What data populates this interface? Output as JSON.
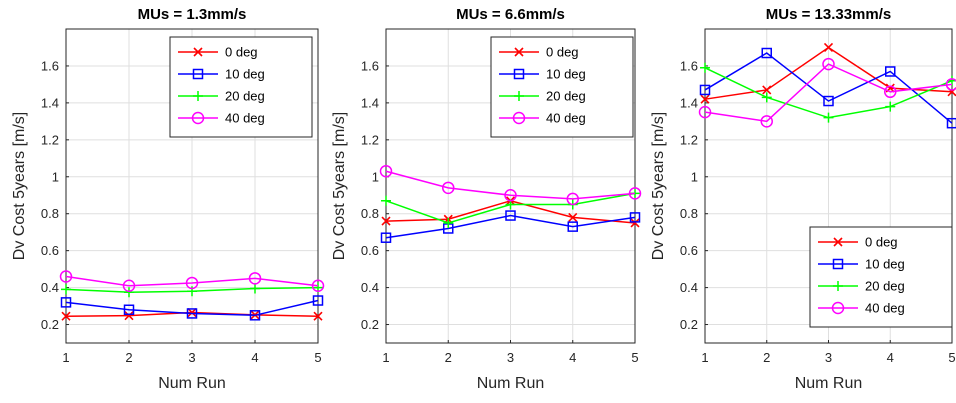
{
  "chart_data": [
    {
      "type": "line",
      "title": "MUs = 1.3mm/s",
      "xlabel": "Num Run",
      "ylabel": "Dv Cost 5years [m/s]",
      "x": [
        1,
        2,
        3,
        4,
        5
      ],
      "xlim": [
        1,
        5
      ],
      "ylim": [
        0.1,
        1.8
      ],
      "yticks": [
        0.2,
        0.4,
        0.6,
        0.8,
        1,
        1.2,
        1.4,
        1.6
      ],
      "grid": true,
      "legend_position": "top-right",
      "series": [
        {
          "name": "0 deg",
          "color": "#ff0000",
          "marker": "x",
          "values": [
            0.245,
            0.248,
            0.265,
            0.252,
            0.245
          ]
        },
        {
          "name": "10 deg",
          "color": "#0000ff",
          "marker": "square",
          "values": [
            0.32,
            0.28,
            0.26,
            0.25,
            0.33
          ]
        },
        {
          "name": "20 deg",
          "color": "#00ff00",
          "marker": "plus",
          "values": [
            0.39,
            0.375,
            0.38,
            0.395,
            0.4
          ]
        },
        {
          "name": "40 deg",
          "color": "#ff00ff",
          "marker": "circle",
          "values": [
            0.46,
            0.41,
            0.425,
            0.45,
            0.41
          ]
        }
      ]
    },
    {
      "type": "line",
      "title": "MUs = 6.6mm/s",
      "xlabel": "Num Run",
      "ylabel": "Dv Cost 5years [m/s]",
      "x": [
        1,
        2,
        3,
        4,
        5
      ],
      "xlim": [
        1,
        5
      ],
      "ylim": [
        0.1,
        1.8
      ],
      "yticks": [
        0.2,
        0.4,
        0.6,
        0.8,
        1,
        1.2,
        1.4,
        1.6
      ],
      "grid": true,
      "legend_position": "top-right",
      "series": [
        {
          "name": "0 deg",
          "color": "#ff0000",
          "marker": "x",
          "values": [
            0.76,
            0.77,
            0.87,
            0.78,
            0.75
          ]
        },
        {
          "name": "10 deg",
          "color": "#0000ff",
          "marker": "square",
          "values": [
            0.67,
            0.72,
            0.79,
            0.73,
            0.78
          ]
        },
        {
          "name": "20 deg",
          "color": "#00ff00",
          "marker": "plus",
          "values": [
            0.87,
            0.75,
            0.85,
            0.85,
            0.91
          ]
        },
        {
          "name": "40 deg",
          "color": "#ff00ff",
          "marker": "circle",
          "values": [
            1.03,
            0.94,
            0.9,
            0.88,
            0.91
          ]
        }
      ]
    },
    {
      "type": "line",
      "title": "MUs = 13.33mm/s",
      "xlabel": "Num Run",
      "ylabel": "Dv Cost 5years [m/s]",
      "x": [
        1,
        2,
        3,
        4,
        5
      ],
      "xlim": [
        1,
        5
      ],
      "ylim": [
        0.1,
        1.8
      ],
      "yticks": [
        0.2,
        0.4,
        0.6,
        0.8,
        1,
        1.2,
        1.4,
        1.6
      ],
      "grid": true,
      "legend_position": "bottom-right",
      "series": [
        {
          "name": "0 deg",
          "color": "#ff0000",
          "marker": "x",
          "values": [
            1.42,
            1.47,
            1.7,
            1.48,
            1.46
          ]
        },
        {
          "name": "10 deg",
          "color": "#0000ff",
          "marker": "square",
          "values": [
            1.47,
            1.67,
            1.41,
            1.57,
            1.29
          ]
        },
        {
          "name": "20 deg",
          "color": "#00ff00",
          "marker": "plus",
          "values": [
            1.59,
            1.43,
            1.32,
            1.38,
            1.52
          ]
        },
        {
          "name": "40 deg",
          "color": "#ff00ff",
          "marker": "circle",
          "values": [
            1.35,
            1.3,
            1.61,
            1.46,
            1.5
          ]
        }
      ]
    }
  ]
}
